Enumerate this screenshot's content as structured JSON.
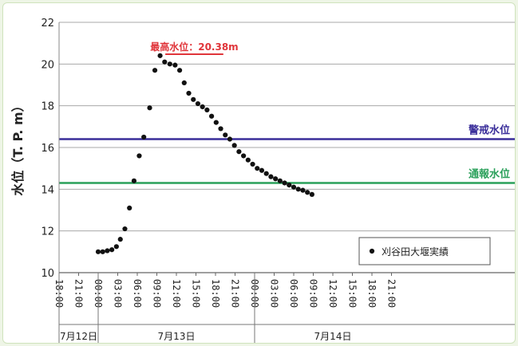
{
  "chart_data": {
    "type": "scatter",
    "ylabel": "水位（T. P. m）",
    "ylim": [
      10,
      22
    ],
    "yticks": [
      10,
      12,
      14,
      16,
      18,
      20,
      22
    ],
    "xlim": [
      0,
      54
    ],
    "x_tick_labels": [
      "18:00",
      "21:00",
      "00:00",
      "03:00",
      "06:00",
      "09:00",
      "12:00",
      "15:00",
      "18:00",
      "21:00",
      "00:00",
      "03:00",
      "06:00",
      "09:00",
      "12:00",
      "15:00",
      "18:00",
      "21:00"
    ],
    "date_labels": [
      {
        "label": "7月12日",
        "x_start": 0,
        "x_end": 6
      },
      {
        "label": "7月13日",
        "x_start": 6,
        "x_end": 30
      },
      {
        "label": "7月14日",
        "x_start": 30,
        "x_end": 54
      }
    ],
    "reference_lines": [
      {
        "name": "警戒水位",
        "y": 16.4,
        "color": "#3a2e9a"
      },
      {
        "name": "通報水位",
        "y": 14.3,
        "color": "#2aa05a"
      }
    ],
    "peak_annotation": {
      "label": "最高水位：20.38m",
      "y": 20.7,
      "x_start": 16.3,
      "x_end": 25.2,
      "color": "#e0353a"
    },
    "legend": {
      "label": "刈谷田大堰実績",
      "position": "bottom-right"
    },
    "series": [
      {
        "name": "刈谷田大堰実績",
        "color": "#111111",
        "points": [
          [
            6.0,
            11.0
          ],
          [
            6.7,
            11.0
          ],
          [
            7.4,
            11.05
          ],
          [
            8.1,
            11.1
          ],
          [
            8.8,
            11.25
          ],
          [
            9.4,
            11.6
          ],
          [
            10.1,
            12.1
          ],
          [
            10.8,
            13.1
          ],
          [
            11.5,
            14.4
          ],
          [
            12.3,
            15.6
          ],
          [
            13.0,
            16.5
          ],
          [
            13.9,
            17.9
          ],
          [
            14.7,
            19.7
          ],
          [
            15.5,
            20.4
          ],
          [
            16.2,
            20.1
          ],
          [
            17.0,
            20.0
          ],
          [
            17.8,
            19.95
          ],
          [
            18.5,
            19.7
          ],
          [
            19.2,
            19.1
          ],
          [
            19.9,
            18.6
          ],
          [
            20.6,
            18.3
          ],
          [
            21.3,
            18.1
          ],
          [
            22.0,
            17.95
          ],
          [
            22.7,
            17.8
          ],
          [
            23.4,
            17.5
          ],
          [
            24.1,
            17.2
          ],
          [
            24.8,
            16.9
          ],
          [
            25.5,
            16.6
          ],
          [
            26.2,
            16.4
          ],
          [
            26.9,
            16.1
          ],
          [
            27.6,
            15.8
          ],
          [
            28.3,
            15.6
          ],
          [
            29.0,
            15.4
          ],
          [
            29.7,
            15.2
          ],
          [
            30.4,
            15.0
          ],
          [
            31.1,
            14.9
          ],
          [
            31.8,
            14.75
          ],
          [
            32.5,
            14.6
          ],
          [
            33.2,
            14.5
          ],
          [
            33.9,
            14.4
          ],
          [
            34.6,
            14.3
          ],
          [
            35.3,
            14.2
          ],
          [
            36.0,
            14.1
          ],
          [
            36.7,
            14.0
          ],
          [
            37.4,
            13.95
          ],
          [
            38.1,
            13.85
          ],
          [
            38.8,
            13.75
          ]
        ]
      }
    ]
  }
}
